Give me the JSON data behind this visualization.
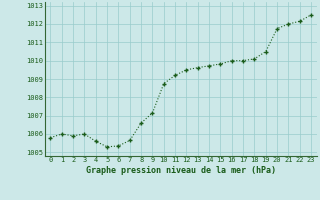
{
  "x": [
    0,
    1,
    2,
    3,
    4,
    5,
    6,
    7,
    8,
    9,
    10,
    11,
    12,
    13,
    14,
    15,
    16,
    17,
    18,
    19,
    20,
    21,
    22,
    23
  ],
  "y": [
    1005.8,
    1006.0,
    1005.9,
    1006.0,
    1005.6,
    1005.3,
    1005.35,
    1005.65,
    1006.6,
    1007.15,
    1008.75,
    1009.2,
    1009.5,
    1009.62,
    1009.72,
    1009.82,
    1010.0,
    1010.0,
    1010.1,
    1010.5,
    1011.75,
    1012.0,
    1012.15,
    1012.5
  ],
  "line_color": "#1a5c1a",
  "marker": "+",
  "marker_size": 3.5,
  "marker_lw": 1.0,
  "line_style": "dotted",
  "line_width": 0.8,
  "bg_color": "#cce8e8",
  "grid_color": "#99cccc",
  "xlabel": "Graphe pression niveau de la mer (hPa)",
  "xlabel_color": "#1a5c1a",
  "tick_color": "#1a5c1a",
  "axis_color": "#336633",
  "ylim": [
    1004.8,
    1013.2
  ],
  "xlim": [
    -0.5,
    23.5
  ],
  "yticks": [
    1005,
    1006,
    1007,
    1008,
    1009,
    1010,
    1011,
    1012,
    1013
  ],
  "xticks": [
    0,
    1,
    2,
    3,
    4,
    5,
    6,
    7,
    8,
    9,
    10,
    11,
    12,
    13,
    14,
    15,
    16,
    17,
    18,
    19,
    20,
    21,
    22,
    23
  ],
  "tick_fontsize": 5.0,
  "xlabel_fontsize": 6.0
}
